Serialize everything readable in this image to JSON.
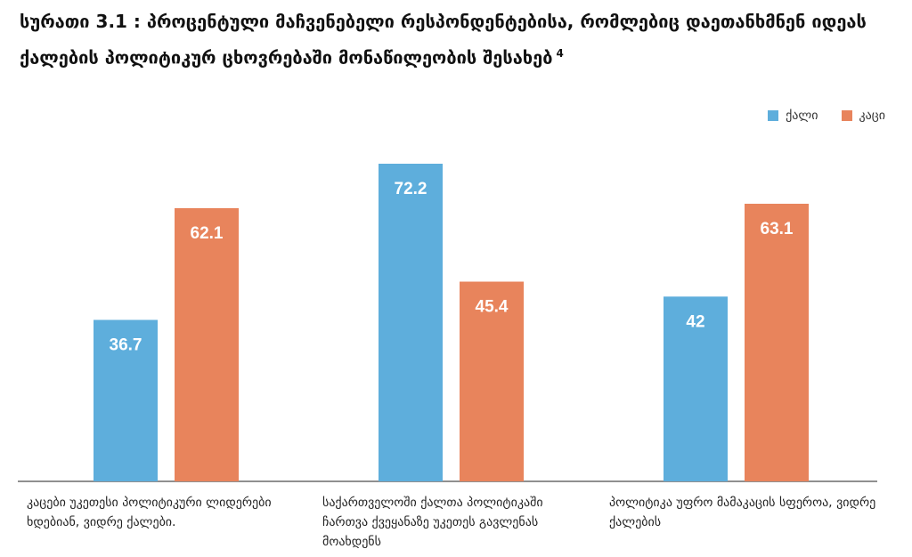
{
  "chart_data": {
    "type": "bar",
    "title": "სურათი 3.1 : პროცენტული მაჩვენებელი რესპონდენტებისა, რომლებიც დაეთანხმნენ იდეას ქალების პოლიტიკურ ცხოვრებაში მონაწილეობის შესახებ",
    "footnote": "4",
    "categories": [
      "კაცები უკეთესი პოლიტიკური ლიდერები ხდებიან, ვიდრე ქალები.",
      "საქართველოში ქალთა პოლიტიკაში ჩართვა ქვეყანაზე უკეთეს გავლენას მოახდენს",
      "პოლიტიკა უფრო მამაკაცის სფეროა, ვიდრე ქალების"
    ],
    "series": [
      {
        "name": "ქალი",
        "color": "#5eaedc",
        "values": [
          36.7,
          72.2,
          42
        ]
      },
      {
        "name": "კაცი",
        "color": "#e8845c",
        "values": [
          62.1,
          45.4,
          63.1
        ]
      }
    ],
    "value_labels": [
      [
        "36.7",
        "72.2",
        "42"
      ],
      [
        "62.1",
        "45.4",
        "63.1"
      ]
    ],
    "ylim": [
      0,
      80
    ],
    "grid": false,
    "legend_position": "top-right"
  }
}
